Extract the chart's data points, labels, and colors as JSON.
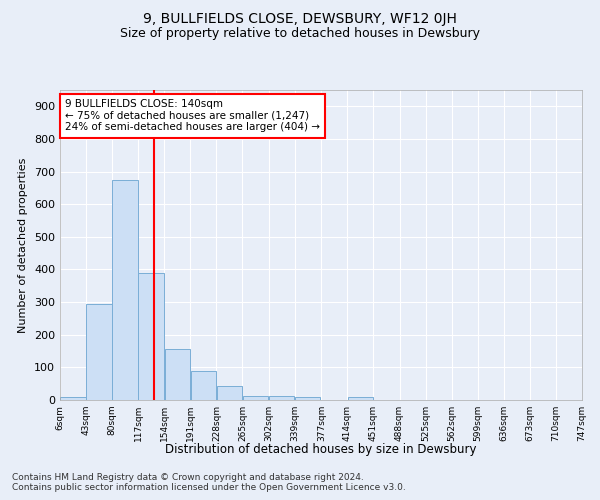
{
  "title": "9, BULLFIELDS CLOSE, DEWSBURY, WF12 0JH",
  "subtitle": "Size of property relative to detached houses in Dewsbury",
  "xlabel": "Distribution of detached houses by size in Dewsbury",
  "ylabel": "Number of detached properties",
  "footnote1": "Contains HM Land Registry data © Crown copyright and database right 2024.",
  "footnote2": "Contains public sector information licensed under the Open Government Licence v3.0.",
  "annotation_line1": "9 BULLFIELDS CLOSE: 140sqm",
  "annotation_line2": "← 75% of detached houses are smaller (1,247)",
  "annotation_line3": "24% of semi-detached houses are larger (404) →",
  "bar_color": "#ccdff5",
  "bar_edge_color": "#7aaed6",
  "red_line_x": 140,
  "ylim": [
    0,
    950
  ],
  "yticks": [
    0,
    100,
    200,
    300,
    400,
    500,
    600,
    700,
    800,
    900
  ],
  "bins_left": [
    6,
    43,
    80,
    117,
    154,
    191,
    228,
    265,
    302,
    339,
    377,
    414,
    451,
    488,
    525,
    562,
    599,
    636,
    673,
    710
  ],
  "bin_width": 37,
  "bar_heights": [
    8,
    293,
    675,
    390,
    155,
    88,
    42,
    13,
    13,
    10,
    0,
    8,
    0,
    0,
    0,
    0,
    0,
    0,
    0,
    0
  ],
  "xtick_labels": [
    "6sqm",
    "43sqm",
    "80sqm",
    "117sqm",
    "154sqm",
    "191sqm",
    "228sqm",
    "265sqm",
    "302sqm",
    "339sqm",
    "377sqm",
    "414sqm",
    "451sqm",
    "488sqm",
    "525sqm",
    "562sqm",
    "599sqm",
    "636sqm",
    "673sqm",
    "710sqm",
    "747sqm"
  ],
  "bg_color": "#e8eef8",
  "grid_color": "#ffffff",
  "title_fontsize": 10,
  "subtitle_fontsize": 9,
  "footnote_fontsize": 6.5
}
